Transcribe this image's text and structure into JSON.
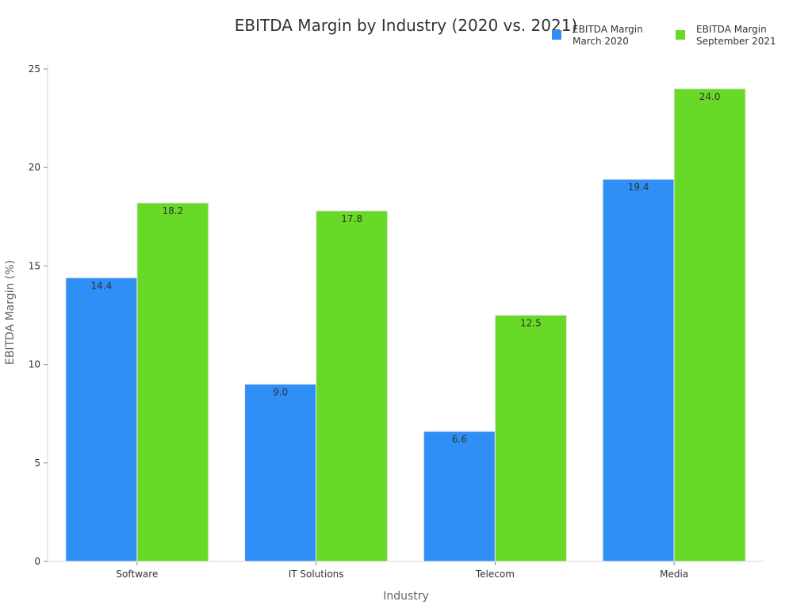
{
  "chart_data": {
    "type": "bar",
    "title": "EBITDA Margin by Industry (2020 vs. 2021)",
    "xlabel": "Industry",
    "ylabel": "EBITDA Margin (%)",
    "categories": [
      "Software",
      "IT Solutions",
      "Telecom",
      "Media"
    ],
    "series": [
      {
        "name": "EBITDA Margin\nMarch 2020",
        "values": [
          14.4,
          9.0,
          6.6,
          19.4
        ],
        "color": "#2f8ff7"
      },
      {
        "name": "EBITDA Margin\nSeptember 2021",
        "values": [
          18.2,
          17.8,
          12.5,
          24.0
        ],
        "color": "#68d927"
      }
    ],
    "ylim": [
      0,
      25
    ],
    "yticks": [
      0,
      5,
      10,
      15,
      20,
      25
    ],
    "grid": false,
    "legend_position": "top-right"
  }
}
